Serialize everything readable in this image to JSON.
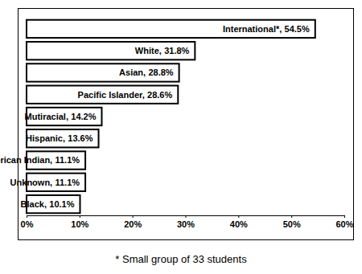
{
  "chart_data": {
    "type": "bar",
    "orientation": "horizontal",
    "categories": [
      "International*,",
      "White,",
      "Asian,",
      "Pacific Islander,",
      "Mutiracial,",
      "Hispanic,",
      "American Indian,",
      "Unknown,",
      "Black,"
    ],
    "values": [
      54.5,
      31.8,
      28.8,
      28.6,
      14.2,
      13.6,
      11.1,
      11.1,
      10.1
    ],
    "value_labels": [
      "54.5%",
      "31.8%",
      "28.8%",
      "28.6%",
      "14.2%",
      "13.6%",
      "11.1%",
      "11.1%",
      "10.1%"
    ],
    "data_labels": true,
    "color": "#ffffff",
    "xlim": [
      0,
      60
    ],
    "xticks": [
      {
        "value": 0,
        "label": "0%"
      },
      {
        "value": 10,
        "label": "10%"
      },
      {
        "value": 20,
        "label": "20%"
      },
      {
        "value": 30,
        "label": "30%"
      },
      {
        "value": 40,
        "label": "40%"
      },
      {
        "value": 50,
        "label": "50%"
      },
      {
        "value": 60,
        "label": "60%"
      }
    ],
    "grid": false,
    "tick_labels": "x",
    "annotations": [
      "* Small group of 33 students"
    ]
  }
}
